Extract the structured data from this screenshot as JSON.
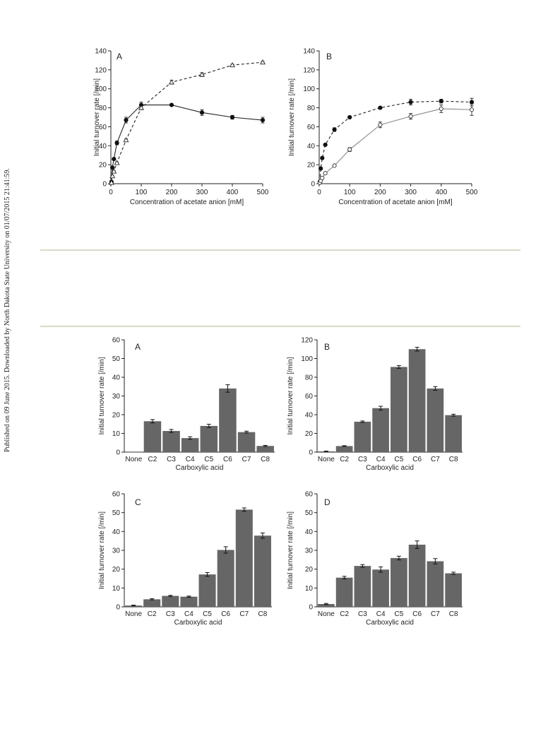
{
  "page": {
    "side_note": "Published on 09 June 2015. Downloaded by North Dakota State University on 01/07/2015 21:41:59."
  },
  "chart_data": [
    {
      "type": "line",
      "panel": "A",
      "xlabel": "Concentration of acetate anion [mM]",
      "ylabel": "Initial turnover rate  [/min]",
      "xlim": [
        0,
        500
      ],
      "ylim": [
        0,
        140
      ],
      "xticks": [
        0,
        100,
        200,
        300,
        400,
        500
      ],
      "yticks": [
        0,
        20,
        40,
        60,
        80,
        100,
        120,
        140
      ],
      "series": [
        {
          "marker": "filled-circle",
          "line": "solid",
          "color": "#222222",
          "x": [
            2,
            5,
            10,
            20,
            50,
            100,
            200,
            300,
            400,
            500
          ],
          "y": [
            2,
            17,
            26,
            43,
            67,
            83,
            83,
            75,
            70,
            67
          ],
          "err": [
            0,
            1,
            1,
            2,
            3,
            3,
            1,
            3,
            2,
            3
          ]
        },
        {
          "marker": "open-triangle",
          "line": "dashed",
          "color": "#222222",
          "x": [
            2,
            5,
            10,
            20,
            50,
            100,
            200,
            300,
            400,
            500
          ],
          "y": [
            1,
            8,
            13,
            22,
            46,
            80,
            107,
            115,
            125,
            128
          ],
          "err": [
            0,
            1,
            1,
            1,
            1,
            2,
            2,
            2,
            1,
            1
          ]
        }
      ]
    },
    {
      "type": "line",
      "panel": "B",
      "xlabel": "Concentration of acetate anion [mM]",
      "ylabel": "Initial turnover rate  [/min]",
      "xlim": [
        0,
        500
      ],
      "ylim": [
        0,
        140
      ],
      "xticks": [
        0,
        100,
        200,
        300,
        400,
        500
      ],
      "yticks": [
        0,
        20,
        40,
        60,
        80,
        100,
        120,
        140
      ],
      "series": [
        {
          "marker": "filled-circle",
          "line": "dashed",
          "color": "#222222",
          "x": [
            2,
            5,
            10,
            20,
            50,
            100,
            200,
            300,
            400,
            500
          ],
          "y": [
            2,
            16,
            27,
            41,
            57,
            70,
            80,
            86,
            87,
            86
          ],
          "err": [
            0,
            1,
            1,
            1,
            2,
            1,
            1,
            3,
            2,
            4
          ]
        },
        {
          "marker": "open-circle",
          "line": "solid",
          "color": "#888888",
          "x": [
            2,
            5,
            10,
            20,
            50,
            100,
            200,
            300,
            400,
            500
          ],
          "y": [
            1,
            3,
            6,
            11,
            19,
            36,
            62,
            71,
            79,
            78
          ],
          "err": [
            0,
            1,
            1,
            1,
            1,
            2,
            3,
            3,
            4,
            6
          ]
        }
      ]
    },
    {
      "type": "bar",
      "panel": "A",
      "xlabel": "Carboxylic acid",
      "ylabel": "Initial turnover rate  [/min]",
      "ylim": [
        0,
        60
      ],
      "yticks": [
        0,
        10,
        20,
        30,
        40,
        50,
        60
      ],
      "categories": [
        "None",
        "C2",
        "C3",
        "C4",
        "C5",
        "C6",
        "C7",
        "C8"
      ],
      "values": [
        0,
        16.5,
        11.3,
        7.5,
        14,
        34,
        10.7,
        3.3
      ],
      "err": [
        0,
        0.9,
        0.8,
        0.7,
        0.9,
        2,
        0.5,
        0.3
      ]
    },
    {
      "type": "bar",
      "panel": "B",
      "xlabel": "Carboxylic acid",
      "ylabel": "Initial turnover rate  [/min]",
      "ylim": [
        0,
        120
      ],
      "yticks": [
        0,
        20,
        40,
        60,
        80,
        100,
        120
      ],
      "categories": [
        "None",
        "C2",
        "C3",
        "C4",
        "C5",
        "C6",
        "C7",
        "C8"
      ],
      "values": [
        0.8,
        6.5,
        32.5,
        47,
        91,
        110,
        68,
        39.5
      ],
      "err": [
        0.3,
        0.4,
        0.8,
        2,
        1.5,
        2,
        2,
        1
      ]
    },
    {
      "type": "bar",
      "panel": "C",
      "xlabel": "Carboxylic acid",
      "ylabel": "Initial turnover rate  [/min]",
      "ylim": [
        0,
        60
      ],
      "yticks": [
        0,
        10,
        20,
        30,
        40,
        50,
        60
      ],
      "categories": [
        "None",
        "C2",
        "C3",
        "C4",
        "C5",
        "C6",
        "C7",
        "C8"
      ],
      "values": [
        0.7,
        4,
        5.8,
        5.4,
        17.2,
        30.2,
        51.6,
        37.8
      ],
      "err": [
        0.2,
        0.3,
        0.3,
        0.3,
        1,
        1.7,
        0.9,
        1.4
      ]
    },
    {
      "type": "bar",
      "panel": "D",
      "xlabel": "Carboxylic acid",
      "ylabel": "Initial turnover rate  [/min]",
      "ylim": [
        0,
        60
      ],
      "yticks": [
        0,
        10,
        20,
        30,
        40,
        50,
        60
      ],
      "categories": [
        "None",
        "C2",
        "C3",
        "C4",
        "C5",
        "C6",
        "C7",
        "C8"
      ],
      "values": [
        1.5,
        15.5,
        21.7,
        19.8,
        25.9,
        33,
        24.2,
        17.8
      ],
      "err": [
        0.3,
        0.7,
        0.7,
        1.4,
        1,
        2,
        1.4,
        0.6
      ]
    }
  ]
}
